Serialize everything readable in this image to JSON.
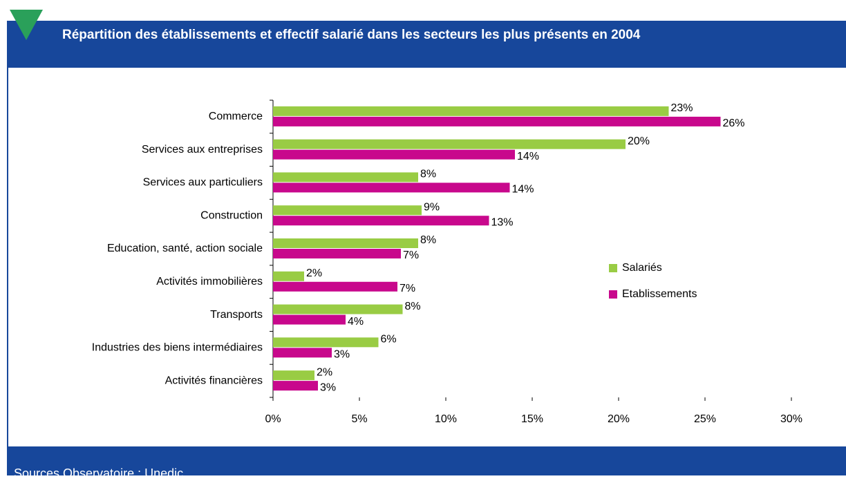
{
  "chart_data": {
    "type": "hbar",
    "title": "Répartition des établissements et effectif salarié dans les secteurs les plus présents en 2004",
    "source": "Sources Observatoire : Unedic",
    "categories": [
      "Commerce",
      "Services aux entreprises",
      "Services aux particuliers",
      "Construction",
      "Education, santé, action sociale",
      "Activités immobilières",
      "Transports",
      "Industries des biens intermédiaires",
      "Activités financières"
    ],
    "series": [
      {
        "name": "Salariés",
        "color": "#99cc44",
        "values": [
          22.9,
          20.4,
          8.4,
          8.6,
          8.4,
          1.8,
          7.5,
          6.1,
          2.4
        ],
        "value_labels": [
          "23%",
          "20%",
          "8%",
          "9%",
          "8%",
          "2%",
          "8%",
          "6%",
          "2%"
        ]
      },
      {
        "name": "Etablissements",
        "color": "#c8088c",
        "values": [
          25.9,
          14.0,
          13.7,
          12.5,
          7.4,
          7.2,
          4.2,
          3.4,
          2.6
        ],
        "value_labels": [
          "26%",
          "14%",
          "14%",
          "13%",
          "7%",
          "7%",
          "4%",
          "3%",
          "3%"
        ]
      }
    ],
    "xlim": [
      0,
      30
    ],
    "xticks": [
      {
        "value": 0,
        "label": "0%"
      },
      {
        "value": 5,
        "label": "5%"
      },
      {
        "value": 10,
        "label": "10%"
      },
      {
        "value": 15,
        "label": "15%"
      },
      {
        "value": 20,
        "label": "20%"
      },
      {
        "value": 25,
        "label": "25%"
      },
      {
        "value": 30,
        "label": "30%"
      }
    ],
    "legend": "right"
  }
}
